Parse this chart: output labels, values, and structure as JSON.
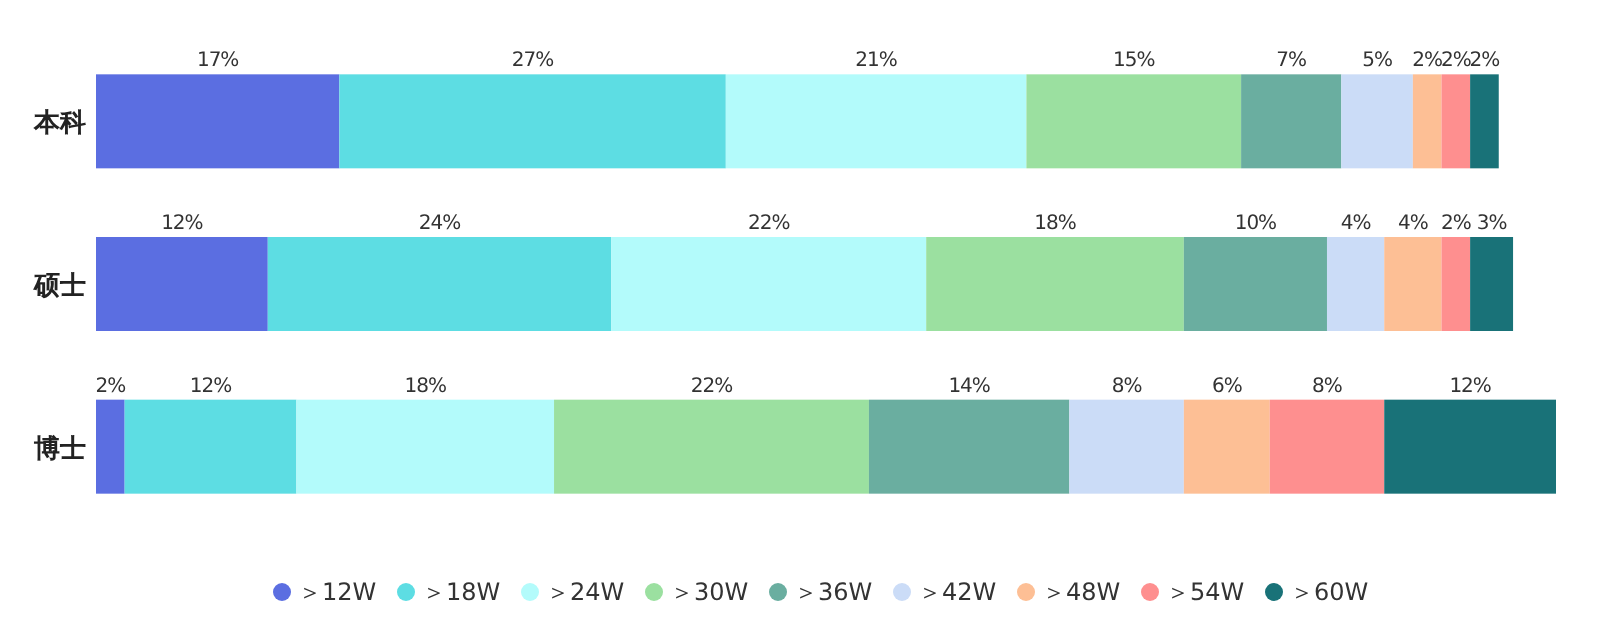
{
  "chart_data": {
    "type": "bar",
    "orientation": "horizontal",
    "stacked": true,
    "legend": "bottom",
    "categories": [
      "本科",
      "硕士",
      "博士"
    ],
    "series": [
      {
        "name": "＞12W",
        "color": "#5b6ee1",
        "values": [
          17,
          12,
          2
        ],
        "value_labels": [
          "17%",
          "12%",
          "2%"
        ]
      },
      {
        "name": "＞18W",
        "color": "#5ddde3",
        "values": [
          27,
          24,
          12
        ],
        "value_labels": [
          "27%",
          "24%",
          "12%"
        ]
      },
      {
        "name": "＞24W",
        "color": "#b3fbfb",
        "values": [
          21,
          22,
          18
        ],
        "value_labels": [
          "21%",
          "22%",
          "18%"
        ]
      },
      {
        "name": "＞30W",
        "color": "#9be0a0",
        "values": [
          15,
          18,
          22
        ],
        "value_labels": [
          "15%",
          "18%",
          "22%"
        ]
      },
      {
        "name": "＞36W",
        "color": "#6aaea0",
        "values": [
          7,
          10,
          14
        ],
        "value_labels": [
          "7%",
          "10%",
          "14%"
        ]
      },
      {
        "name": "＞42W",
        "color": "#cbdcf7",
        "values": [
          5,
          4,
          8
        ],
        "value_labels": [
          "5%",
          "4%",
          "8%"
        ]
      },
      {
        "name": "＞48W",
        "color": "#fdbf95",
        "values": [
          2,
          4,
          6
        ],
        "value_labels": [
          "2%",
          "4%",
          "6%"
        ]
      },
      {
        "name": "＞54W",
        "color": "#fe8f8f",
        "values": [
          2,
          2,
          8
        ],
        "value_labels": [
          "2%",
          "2%",
          "8%"
        ]
      },
      {
        "name": "＞60W",
        "color": "#197278",
        "values": [
          2,
          3,
          12
        ],
        "value_labels": [
          "2%",
          "3%",
          "12%"
        ]
      }
    ]
  }
}
